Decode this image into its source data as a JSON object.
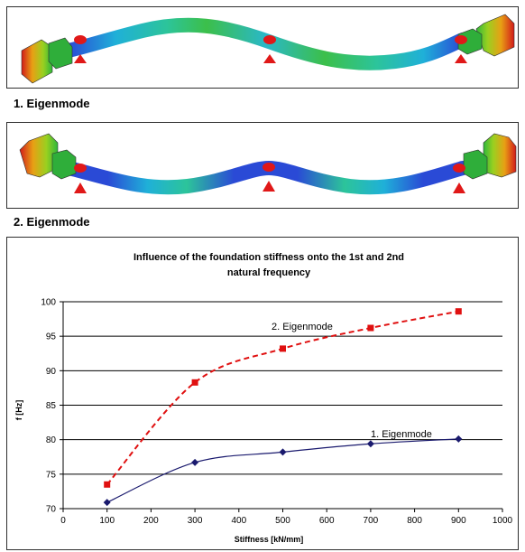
{
  "captions": {
    "mode1": "1. Eigenmode",
    "mode2": "2. Eigenmode"
  },
  "chart_data": {
    "type": "line",
    "title_line1": "Influence of the foundation stiffness onto the 1st and 2nd",
    "title_line2": "natural frequency",
    "xlabel": "Stiffness [kN/mm]",
    "ylabel": "f [Hz]",
    "xlim": [
      0,
      1000
    ],
    "ylim": [
      70,
      100
    ],
    "x_ticks": [
      0,
      100,
      200,
      300,
      400,
      500,
      600,
      700,
      800,
      900,
      1000
    ],
    "y_ticks": [
      70,
      75,
      80,
      85,
      90,
      95,
      100
    ],
    "grid": "horizontal",
    "x": [
      100,
      300,
      500,
      700,
      900
    ],
    "series": [
      {
        "name": "1. Eigenmode",
        "values": [
          70.9,
          76.7,
          78.2,
          79.4,
          80.1
        ],
        "color": "#1a1a6e",
        "marker": "diamond",
        "dash": "solid"
      },
      {
        "name": "2. Eigenmode",
        "values": [
          73.5,
          88.3,
          93.2,
          96.2,
          98.6
        ],
        "color": "#e01010",
        "marker": "square",
        "dash": "dashed"
      }
    ]
  },
  "colors": {
    "fea_blue": "#1e3cd8",
    "fea_cyan": "#18c2d8",
    "fea_green": "#2fb82f",
    "fea_red": "#d81818",
    "support_red": "#e01818"
  }
}
